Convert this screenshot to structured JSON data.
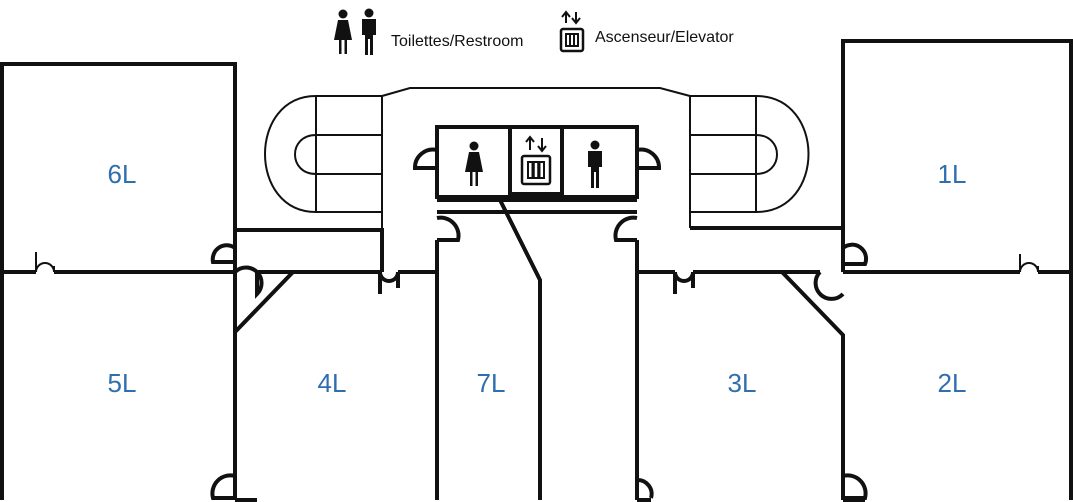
{
  "legend": {
    "restroom_label": "Toilettes/Restroom",
    "elevator_label": "Ascenseur/Elevator",
    "restroom_icon": "restroom-icon",
    "elevator_icon": "elevator-icon"
  },
  "rooms": {
    "r1": "1L",
    "r2": "2L",
    "r3": "3L",
    "r4": "4L",
    "r5": "5L",
    "r6": "6L",
    "r7": "7L"
  },
  "colors": {
    "room_label": "#2f6fae",
    "walls": "#111111"
  }
}
